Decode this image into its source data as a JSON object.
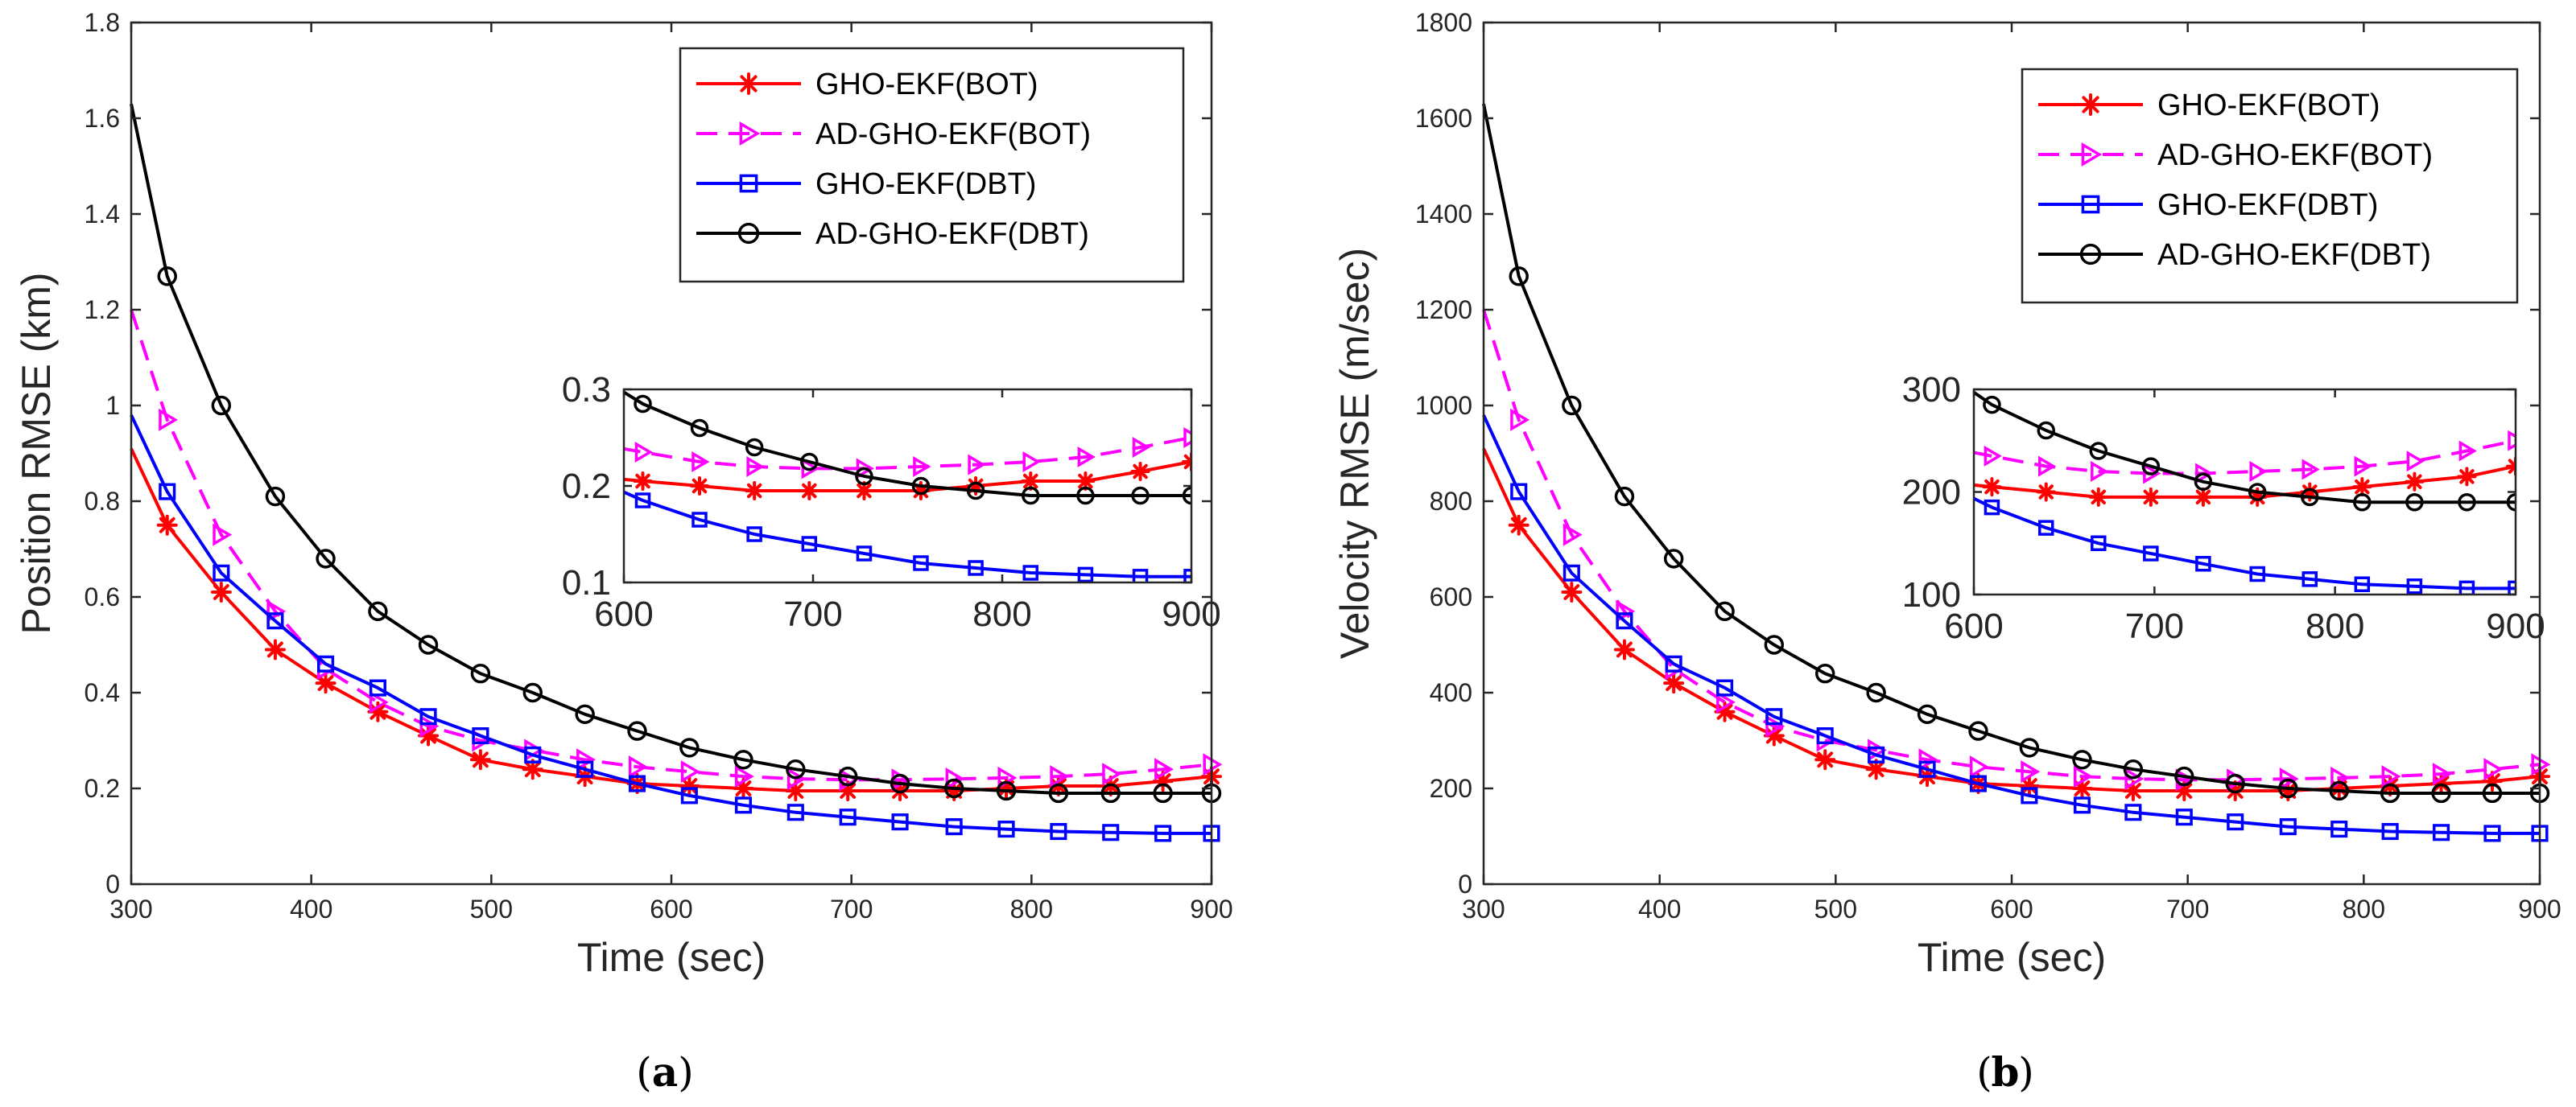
{
  "chart_data": [
    {
      "type": "line",
      "panel_label": "a",
      "xlabel": "Time (sec)",
      "ylabel": "Position RMSE (km)",
      "xlim": [
        300,
        900
      ],
      "ylim": [
        0,
        1.8
      ],
      "xticks": [
        300,
        400,
        500,
        600,
        700,
        800,
        900
      ],
      "yticks": [
        0,
        0.2,
        0.4,
        0.6,
        0.8,
        1,
        1.2,
        1.4,
        1.6,
        1.8
      ],
      "ytick_labels": [
        "0",
        "0.2",
        "0.4",
        "0.6",
        "0.8",
        "1",
        "1.2",
        "1.4",
        "1.6",
        "1.8"
      ],
      "legend_position": "top-right",
      "series": [
        {
          "name": "GHO-EKF(BOT)",
          "color": "#ff0000",
          "style": "solid",
          "marker": "star",
          "x": [
            300,
            320,
            350,
            380,
            408,
            437,
            465,
            494,
            523,
            552,
            581,
            610,
            640,
            669,
            698,
            727,
            757,
            786,
            815,
            844,
            873,
            900
          ],
          "values": [
            0.91,
            0.75,
            0.61,
            0.49,
            0.42,
            0.36,
            0.31,
            0.26,
            0.24,
            0.225,
            0.21,
            0.205,
            0.2,
            0.195,
            0.195,
            0.195,
            0.195,
            0.2,
            0.205,
            0.205,
            0.215,
            0.225
          ]
        },
        {
          "name": "AD-GHO-EKF(BOT)",
          "color": "#ff00ff",
          "style": "dashed",
          "marker": "triangle-right",
          "x": [
            300,
            320,
            350,
            380,
            408,
            437,
            465,
            494,
            523,
            552,
            581,
            610,
            640,
            669,
            698,
            727,
            757,
            786,
            815,
            844,
            873,
            900
          ],
          "values": [
            1.2,
            0.97,
            0.73,
            0.57,
            0.45,
            0.38,
            0.33,
            0.3,
            0.28,
            0.26,
            0.245,
            0.235,
            0.225,
            0.22,
            0.218,
            0.218,
            0.22,
            0.222,
            0.225,
            0.23,
            0.24,
            0.25
          ]
        },
        {
          "name": "GHO-EKF(DBT)",
          "color": "#0000ff",
          "style": "solid",
          "marker": "square",
          "x": [
            300,
            320,
            350,
            380,
            408,
            437,
            465,
            494,
            523,
            552,
            581,
            610,
            640,
            669,
            698,
            727,
            757,
            786,
            815,
            844,
            873,
            900
          ],
          "values": [
            0.98,
            0.82,
            0.65,
            0.55,
            0.46,
            0.41,
            0.35,
            0.31,
            0.27,
            0.24,
            0.21,
            0.185,
            0.165,
            0.15,
            0.14,
            0.13,
            0.12,
            0.115,
            0.11,
            0.108,
            0.106,
            0.106
          ]
        },
        {
          "name": "AD-GHO-EKF(DBT)",
          "color": "#000000",
          "style": "solid",
          "marker": "circle",
          "x": [
            300,
            320,
            350,
            380,
            408,
            437,
            465,
            494,
            523,
            552,
            581,
            610,
            640,
            669,
            698,
            727,
            757,
            786,
            815,
            844,
            873,
            900
          ],
          "values": [
            1.63,
            1.27,
            1.0,
            0.81,
            0.68,
            0.57,
            0.5,
            0.44,
            0.4,
            0.355,
            0.32,
            0.285,
            0.26,
            0.24,
            0.225,
            0.21,
            0.2,
            0.195,
            0.19,
            0.19,
            0.19,
            0.19
          ]
        }
      ],
      "inset": {
        "xlim": [
          600,
          900
        ],
        "ylim": [
          0.1,
          0.3
        ],
        "xticks": [
          600,
          700,
          800,
          900
        ],
        "yticks": [
          0.1,
          0.2,
          0.3
        ],
        "ytick_labels": [
          "0.1",
          "0.2",
          "0.3"
        ]
      }
    },
    {
      "type": "line",
      "panel_label": "b",
      "xlabel": "Time (sec)",
      "ylabel": "Velocity RMSE (m/sec)",
      "xlim": [
        300,
        900
      ],
      "ylim": [
        0,
        1800
      ],
      "xticks": [
        300,
        400,
        500,
        600,
        700,
        800,
        900
      ],
      "yticks": [
        0,
        200,
        400,
        600,
        800,
        1000,
        1200,
        1400,
        1600,
        1800
      ],
      "ytick_labels": [
        "0",
        "200",
        "400",
        "600",
        "800",
        "1000",
        "1200",
        "1400",
        "1600",
        "1800"
      ],
      "legend_position": "top-right",
      "series": [
        {
          "name": "GHO-EKF(BOT)",
          "color": "#ff0000",
          "style": "solid",
          "marker": "star",
          "x": [
            300,
            320,
            350,
            380,
            408,
            437,
            465,
            494,
            523,
            552,
            581,
            610,
            640,
            669,
            698,
            727,
            757,
            786,
            815,
            844,
            873,
            900
          ],
          "values": [
            910,
            750,
            610,
            490,
            420,
            360,
            310,
            260,
            240,
            225,
            210,
            205,
            200,
            195,
            195,
            195,
            195,
            200,
            205,
            210,
            215,
            225
          ]
        },
        {
          "name": "AD-GHO-EKF(BOT)",
          "color": "#ff00ff",
          "style": "dashed",
          "marker": "triangle-right",
          "x": [
            300,
            320,
            350,
            380,
            408,
            437,
            465,
            494,
            523,
            552,
            581,
            610,
            640,
            669,
            698,
            727,
            757,
            786,
            815,
            844,
            873,
            900
          ],
          "values": [
            1200,
            970,
            730,
            570,
            450,
            380,
            330,
            300,
            280,
            260,
            245,
            235,
            225,
            220,
            218,
            218,
            220,
            222,
            225,
            230,
            240,
            250
          ]
        },
        {
          "name": "GHO-EKF(DBT)",
          "color": "#0000ff",
          "style": "solid",
          "marker": "square",
          "x": [
            300,
            320,
            350,
            380,
            408,
            437,
            465,
            494,
            523,
            552,
            581,
            610,
            640,
            669,
            698,
            727,
            757,
            786,
            815,
            844,
            873,
            900
          ],
          "values": [
            980,
            820,
            650,
            550,
            460,
            410,
            350,
            310,
            270,
            240,
            210,
            185,
            165,
            150,
            140,
            130,
            120,
            115,
            110,
            108,
            106,
            106
          ]
        },
        {
          "name": "AD-GHO-EKF(DBT)",
          "color": "#000000",
          "style": "solid",
          "marker": "circle",
          "x": [
            300,
            320,
            350,
            380,
            408,
            437,
            465,
            494,
            523,
            552,
            581,
            610,
            640,
            669,
            698,
            727,
            757,
            786,
            815,
            844,
            873,
            900
          ],
          "values": [
            1630,
            1270,
            1000,
            810,
            680,
            570,
            500,
            440,
            400,
            355,
            320,
            285,
            260,
            240,
            225,
            210,
            200,
            195,
            190,
            190,
            190,
            190
          ]
        }
      ],
      "inset": {
        "xlim": [
          600,
          900
        ],
        "ylim": [
          100,
          300
        ],
        "xticks": [
          600,
          700,
          800,
          900
        ],
        "yticks": [
          100,
          200,
          300
        ],
        "ytick_labels": [
          "100",
          "200",
          "300"
        ]
      }
    }
  ]
}
